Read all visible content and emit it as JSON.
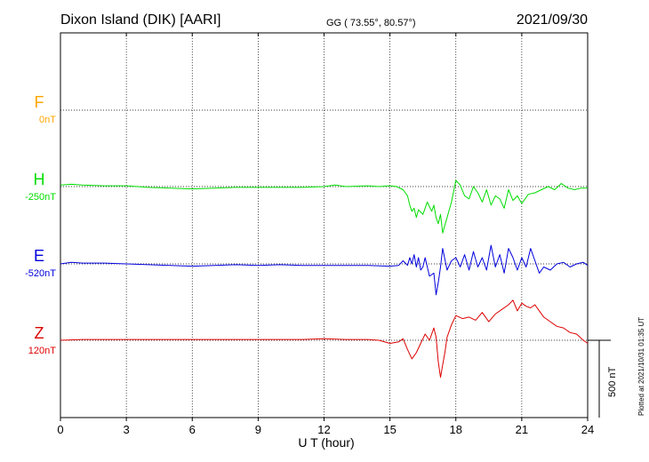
{
  "header": {
    "station": "Dixon Island (DIK)  [AARI]",
    "coords": "GG ( 73.55°,  80.57°)",
    "date": "2021/09/30"
  },
  "plotted_note": "Plotted at 2021/10/31 01:35 UT",
  "chart_data": {
    "type": "line",
    "xlabel": "U T (hour)",
    "xlim": [
      0,
      24
    ],
    "xticks": [
      0,
      3,
      6,
      9,
      12,
      15,
      18,
      21,
      24
    ],
    "xtick_labels": [
      "0",
      "3",
      "6",
      "9",
      "12",
      "15",
      "18",
      "21",
      "24"
    ],
    "scale_bar_label": "500 nT",
    "scale_bar_nT": 500,
    "grid": true,
    "series": [
      {
        "name": "F",
        "baseline_label": "0nT",
        "color": "#ffa500",
        "x": [],
        "y": []
      },
      {
        "name": "H",
        "baseline_label": "-250nT",
        "color": "#00dd00",
        "x": [
          0,
          0.5,
          1,
          2,
          3,
          4,
          5,
          6,
          7,
          8,
          9,
          10,
          11,
          12,
          12.5,
          13,
          14,
          14.5,
          15,
          15.3,
          15.6,
          15.8,
          15.9,
          16.0,
          16.1,
          16.2,
          16.3,
          16.5,
          16.7,
          16.9,
          17.0,
          17.1,
          17.2,
          17.3,
          17.4,
          17.5,
          17.6,
          17.8,
          18.0,
          18.2,
          18.4,
          18.6,
          18.8,
          19.0,
          19.2,
          19.4,
          19.6,
          19.8,
          20.0,
          20.2,
          20.4,
          20.6,
          20.8,
          21.0,
          21.3,
          21.6,
          21.9,
          22.2,
          22.5,
          22.8,
          23.1,
          23.4,
          23.7,
          24
        ],
        "y": [
          10,
          15,
          10,
          5,
          5,
          -5,
          -10,
          -15,
          -10,
          -5,
          -5,
          -5,
          -5,
          0,
          10,
          0,
          5,
          0,
          5,
          0,
          -20,
          -60,
          -120,
          -160,
          -140,
          -200,
          -150,
          -180,
          -100,
          -160,
          -120,
          -200,
          -240,
          -180,
          -300,
          -250,
          -200,
          -100,
          40,
          10,
          -60,
          -80,
          0,
          -40,
          -100,
          -20,
          -120,
          -60,
          -80,
          -140,
          -20,
          -90,
          -60,
          -110,
          -50,
          -40,
          -20,
          0,
          -20,
          20,
          -10,
          -20,
          -10,
          -10
        ]
      },
      {
        "name": "E",
        "baseline_label": "-520nT",
        "color": "#0000dd",
        "x": [
          0,
          0.5,
          1,
          2,
          3,
          4,
          5,
          6,
          7,
          8,
          9,
          10,
          11,
          12,
          13,
          14,
          15,
          15.4,
          15.6,
          15.8,
          15.9,
          16.0,
          16.1,
          16.2,
          16.3,
          16.4,
          16.5,
          16.6,
          16.8,
          17.0,
          17.1,
          17.2,
          17.3,
          17.4,
          17.6,
          17.8,
          18.0,
          18.2,
          18.4,
          18.6,
          18.8,
          19.0,
          19.2,
          19.4,
          19.6,
          19.8,
          20.0,
          20.2,
          20.4,
          20.6,
          20.8,
          21.0,
          21.2,
          21.4,
          21.6,
          21.8,
          22.0,
          22.3,
          22.6,
          22.9,
          23.2,
          23.5,
          23.8,
          24
        ],
        "y": [
          0,
          10,
          5,
          5,
          0,
          -5,
          -10,
          -15,
          -10,
          -5,
          -10,
          -5,
          -10,
          -10,
          -10,
          -10,
          -15,
          -10,
          20,
          -10,
          40,
          0,
          60,
          -20,
          40,
          -40,
          -20,
          40,
          -80,
          -60,
          -200,
          -120,
          -20,
          100,
          -40,
          20,
          40,
          -20,
          60,
          -40,
          80,
          -20,
          40,
          -40,
          120,
          -20,
          60,
          -60,
          100,
          40,
          -40,
          40,
          -20,
          100,
          20,
          -60,
          -20,
          -40,
          0,
          10,
          -20,
          0,
          10,
          -10
        ]
      },
      {
        "name": "Z",
        "baseline_label": "120nT",
        "color": "#dd0000",
        "x": [
          0,
          1,
          2,
          3,
          4,
          5,
          6,
          7,
          8,
          9,
          10,
          11,
          12,
          13,
          14,
          14.5,
          15,
          15.4,
          15.6,
          15.8,
          16.0,
          16.2,
          16.4,
          16.6,
          16.8,
          17.0,
          17.1,
          17.2,
          17.3,
          17.4,
          17.5,
          17.6,
          17.8,
          18.0,
          18.3,
          18.6,
          18.9,
          19.2,
          19.5,
          19.8,
          20.1,
          20.4,
          20.6,
          20.8,
          21.0,
          21.2,
          21.4,
          21.6,
          21.8,
          22.0,
          22.3,
          22.6,
          22.9,
          23.2,
          23.5,
          23.8,
          24
        ],
        "y": [
          0,
          5,
          5,
          5,
          5,
          5,
          5,
          5,
          5,
          5,
          5,
          5,
          10,
          5,
          5,
          0,
          -20,
          -10,
          10,
          -60,
          -120,
          -80,
          -20,
          40,
          0,
          80,
          20,
          -140,
          -240,
          -160,
          -80,
          20,
          100,
          160,
          140,
          150,
          130,
          180,
          120,
          170,
          200,
          230,
          260,
          190,
          240,
          220,
          210,
          230,
          190,
          150,
          120,
          90,
          80,
          50,
          40,
          0,
          -20
        ]
      }
    ]
  }
}
